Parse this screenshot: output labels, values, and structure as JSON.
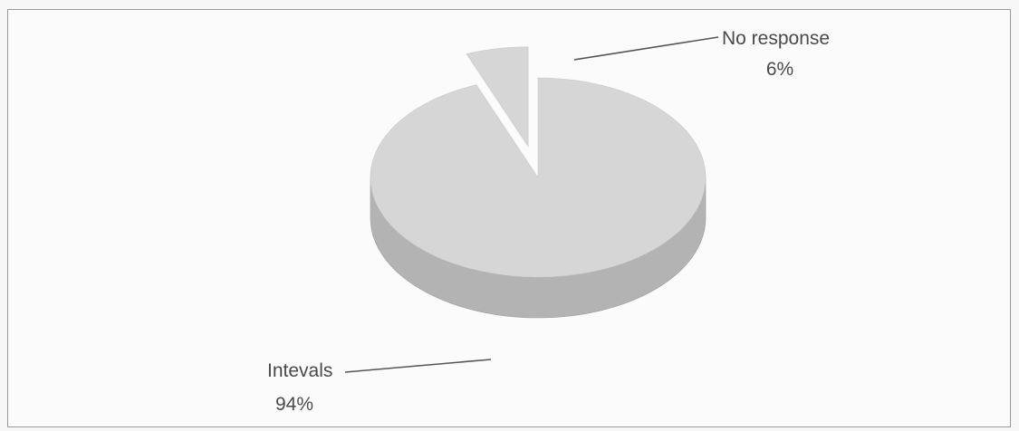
{
  "chart_data": {
    "type": "pie",
    "title": "",
    "slices": [
      {
        "label": "Intevals",
        "value": 94,
        "value_label": "94%"
      },
      {
        "label": "No response",
        "value": 6,
        "value_label": "6%"
      }
    ],
    "exploded": "No response",
    "style": "3d",
    "legend": "none",
    "colors": {
      "top": "#d6d6d6",
      "side": "#b3b3b3",
      "side_dark": "#9e9e9e",
      "leader": "#555555"
    }
  }
}
